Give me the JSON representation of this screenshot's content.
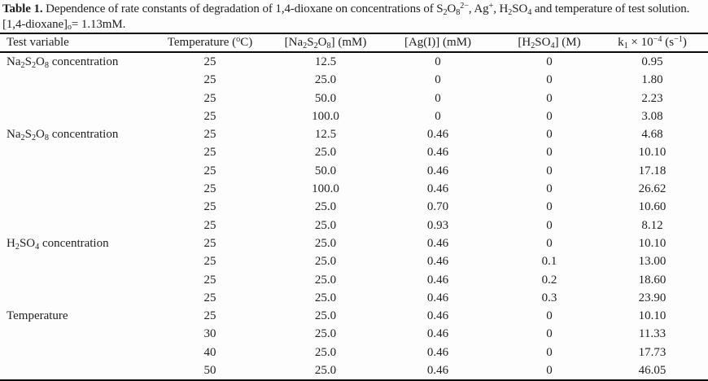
{
  "caption": {
    "line1": [
      {
        "t": "Table 1.",
        "s": "b"
      },
      {
        "t": " Dependence of rate constants of degradation of 1,4-dioxane on concentrations of S"
      },
      {
        "t": "2",
        "s": "sub"
      },
      {
        "t": "O"
      },
      {
        "t": "8",
        "s": "sub"
      },
      {
        "t": "2−",
        "s": "sup"
      },
      {
        "t": ", Ag"
      },
      {
        "t": "+",
        "s": "sup"
      },
      {
        "t": ", H"
      },
      {
        "t": "2",
        "s": "sub"
      },
      {
        "t": "SO"
      },
      {
        "t": "4",
        "s": "sub"
      },
      {
        "t": " and temperature of test solution."
      }
    ],
    "line2": [
      {
        "t": "[1,4-dioxane]"
      },
      {
        "t": "o",
        "s": "sub"
      },
      {
        "t": "= 1.13mM."
      }
    ]
  },
  "table": {
    "headers": [
      {
        "id": "test-variable",
        "segments": [
          {
            "t": "Test variable"
          }
        ]
      },
      {
        "id": "temperature",
        "segments": [
          {
            "t": "Temperature ("
          },
          {
            "t": "o",
            "s": "sup"
          },
          {
            "t": "C)"
          }
        ]
      },
      {
        "id": "na2s2o8",
        "segments": [
          {
            "t": "[Na"
          },
          {
            "t": "2",
            "s": "sub"
          },
          {
            "t": "S"
          },
          {
            "t": "2",
            "s": "sub"
          },
          {
            "t": "O"
          },
          {
            "t": "8",
            "s": "sub"
          },
          {
            "t": "] (mM)"
          }
        ]
      },
      {
        "id": "ag",
        "segments": [
          {
            "t": "[Ag(I)] (mM)"
          }
        ]
      },
      {
        "id": "h2so4",
        "segments": [
          {
            "t": "[H"
          },
          {
            "t": "2",
            "s": "sub"
          },
          {
            "t": "SO"
          },
          {
            "t": "4",
            "s": "sub"
          },
          {
            "t": "] (M)"
          }
        ]
      },
      {
        "id": "k1",
        "segments": [
          {
            "t": "k"
          },
          {
            "t": "1",
            "s": "sub"
          },
          {
            "t": " × 10"
          },
          {
            "t": "−4",
            "s": "sup"
          },
          {
            "t": " (s"
          },
          {
            "t": "−1",
            "s": "sup"
          },
          {
            "t": ")"
          }
        ]
      }
    ],
    "rows": [
      {
        "variable": [
          {
            "t": "Na"
          },
          {
            "t": "2",
            "s": "sub"
          },
          {
            "t": "S"
          },
          {
            "t": "2",
            "s": "sub"
          },
          {
            "t": "O"
          },
          {
            "t": "8",
            "s": "sub"
          },
          {
            "t": " concentration"
          }
        ],
        "values": [
          "25",
          "12.5",
          "0",
          "0",
          "0.95"
        ]
      },
      {
        "variable": [],
        "values": [
          "25",
          "25.0",
          "0",
          "0",
          "1.80"
        ]
      },
      {
        "variable": [],
        "values": [
          "25",
          "50.0",
          "0",
          "0",
          "2.23"
        ]
      },
      {
        "variable": [],
        "values": [
          "25",
          "100.0",
          "0",
          "0",
          "3.08"
        ]
      },
      {
        "variable": [
          {
            "t": "Na"
          },
          {
            "t": "2",
            "s": "sub"
          },
          {
            "t": "S"
          },
          {
            "t": "2",
            "s": "sub"
          },
          {
            "t": "O"
          },
          {
            "t": "8",
            "s": "sub"
          },
          {
            "t": " concentration"
          }
        ],
        "values": [
          "25",
          "12.5",
          "0.46",
          "0",
          "4.68"
        ]
      },
      {
        "variable": [],
        "values": [
          "25",
          "25.0",
          "0.46",
          "0",
          "10.10"
        ]
      },
      {
        "variable": [],
        "values": [
          "25",
          "50.0",
          "0.46",
          "0",
          "17.18"
        ]
      },
      {
        "variable": [],
        "values": [
          "25",
          "100.0",
          "0.46",
          "0",
          "26.62"
        ]
      },
      {
        "variable": [],
        "values": [
          "25",
          "25.0",
          "0.70",
          "0",
          "10.60"
        ]
      },
      {
        "variable": [],
        "values": [
          "25",
          "25.0",
          "0.93",
          "0",
          "8.12"
        ]
      },
      {
        "variable": [
          {
            "t": "H"
          },
          {
            "t": "2",
            "s": "sub"
          },
          {
            "t": "SO"
          },
          {
            "t": "4",
            "s": "sub"
          },
          {
            "t": " concentration"
          }
        ],
        "values": [
          "25",
          "25.0",
          "0.46",
          "0",
          "10.10"
        ]
      },
      {
        "variable": [],
        "values": [
          "25",
          "25.0",
          "0.46",
          "0.1",
          "13.00"
        ]
      },
      {
        "variable": [],
        "values": [
          "25",
          "25.0",
          "0.46",
          "0.2",
          "18.60"
        ]
      },
      {
        "variable": [],
        "values": [
          "25",
          "25.0",
          "0.46",
          "0.3",
          "23.90"
        ]
      },
      {
        "variable": [
          {
            "t": "Temperature"
          }
        ],
        "values": [
          "25",
          "25.0",
          "0.46",
          "0",
          "10.10"
        ]
      },
      {
        "variable": [],
        "values": [
          "30",
          "25.0",
          "0.46",
          "0",
          "11.33"
        ]
      },
      {
        "variable": [],
        "values": [
          "40",
          "25.0",
          "0.46",
          "0",
          "17.73"
        ]
      },
      {
        "variable": [],
        "values": [
          "50",
          "25.0",
          "0.46",
          "0",
          "46.05"
        ]
      }
    ]
  }
}
